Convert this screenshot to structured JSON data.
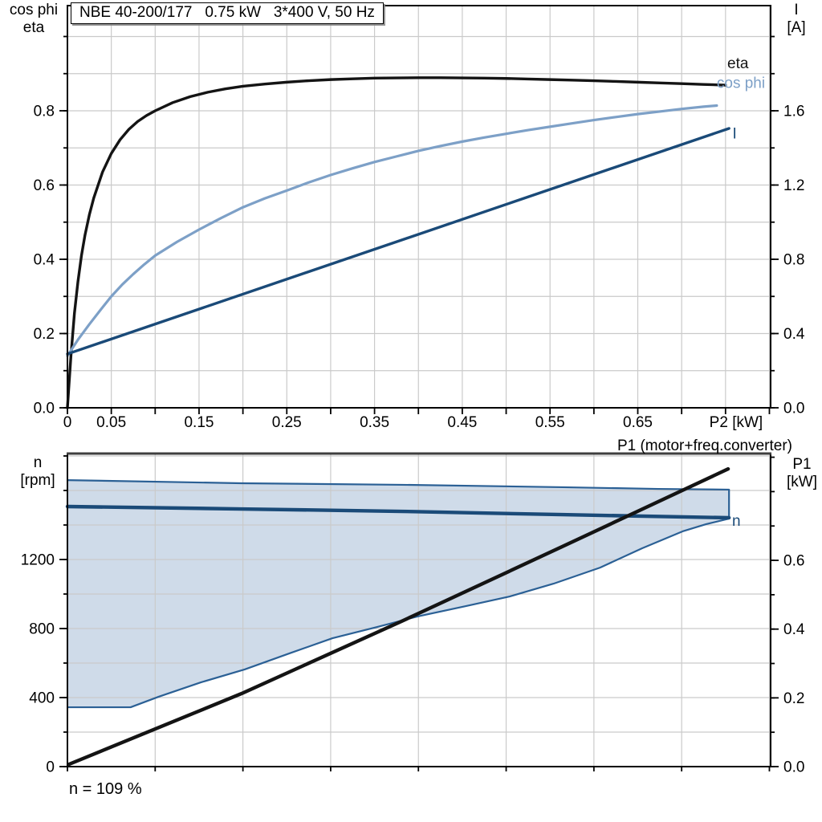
{
  "title_box": {
    "text": "NBE 40-200/177   0.75 kW   3*400 V, 50 Hz"
  },
  "footer": {
    "text": "n = 109 %"
  },
  "colors": {
    "black": "#141414",
    "light_blue": "#7da0c7",
    "dark_blue": "#1a4a78",
    "region_edge": "#2b6095",
    "region_fill": "#cfdbe9",
    "grid": "#cacaca",
    "frame": "#000000",
    "frame_gray": "#3f3f3f",
    "text": "#000000"
  },
  "chart_data": [
    {
      "id": "top",
      "type": "line",
      "x_axis": {
        "min": 0,
        "max": 0.8014,
        "grid_step": 0.05,
        "tick_step": 0.05,
        "unit": "kW",
        "labels": [
          {
            "v": 0,
            "t": "0"
          },
          {
            "v": 0.05,
            "t": "0.05"
          },
          {
            "v": 0.15,
            "t": "0.15"
          },
          {
            "v": 0.25,
            "t": "0.25"
          },
          {
            "v": 0.35,
            "t": "0.35"
          },
          {
            "v": 0.45,
            "t": "0.45"
          },
          {
            "v": 0.55,
            "t": "0.55"
          },
          {
            "v": 0.65,
            "t": "0.65"
          },
          {
            "v": 0.762,
            "t": "P2 [kW]"
          }
        ]
      },
      "y_left": {
        "title1": "cos phi",
        "title2": "eta",
        "min": 0,
        "max": 1.0832,
        "grid_step": 0.1,
        "minor_tick_step": 0.1,
        "labels": [
          {
            "v": 0,
            "t": "0.0"
          },
          {
            "v": 0.2,
            "t": "0.2"
          },
          {
            "v": 0.4,
            "t": "0.4"
          },
          {
            "v": 0.6,
            "t": "0.6"
          },
          {
            "v": 0.8,
            "t": "0.8"
          }
        ]
      },
      "y_right": {
        "title1": "I",
        "title2": "[A]",
        "min": 0,
        "max": 2.1665,
        "minor_tick_step": 0.2,
        "labels": [
          {
            "v": 0,
            "t": "0.0"
          },
          {
            "v": 0.4,
            "t": "0.4"
          },
          {
            "v": 0.8,
            "t": "0.8"
          },
          {
            "v": 1.2,
            "t": "1.2"
          },
          {
            "v": 1.6,
            "t": "1.6"
          }
        ]
      },
      "series": [
        {
          "name": "eta",
          "color_key": "black",
          "width": 3.4,
          "axis": "left",
          "label": {
            "t": "eta",
            "x": 0.752,
            "v": 0.915
          },
          "points": [
            [
              0,
              0
            ],
            [
              0.004,
              0.14
            ],
            [
              0.008,
              0.255
            ],
            [
              0.012,
              0.34
            ],
            [
              0.016,
              0.41
            ],
            [
              0.02,
              0.465
            ],
            [
              0.025,
              0.52
            ],
            [
              0.03,
              0.565
            ],
            [
              0.04,
              0.635
            ],
            [
              0.05,
              0.685
            ],
            [
              0.06,
              0.722
            ],
            [
              0.07,
              0.75
            ],
            [
              0.08,
              0.771
            ],
            [
              0.09,
              0.787
            ],
            [
              0.1,
              0.8
            ],
            [
              0.12,
              0.822
            ],
            [
              0.14,
              0.838
            ],
            [
              0.16,
              0.85
            ],
            [
              0.18,
              0.859
            ],
            [
              0.2,
              0.866
            ],
            [
              0.225,
              0.872
            ],
            [
              0.25,
              0.877
            ],
            [
              0.275,
              0.881
            ],
            [
              0.3,
              0.884
            ],
            [
              0.325,
              0.886
            ],
            [
              0.35,
              0.888
            ],
            [
              0.375,
              0.8885
            ],
            [
              0.4,
              0.889
            ],
            [
              0.425,
              0.889
            ],
            [
              0.45,
              0.8885
            ],
            [
              0.475,
              0.888
            ],
            [
              0.5,
              0.887
            ],
            [
              0.525,
              0.8855
            ],
            [
              0.55,
              0.884
            ],
            [
              0.575,
              0.8825
            ],
            [
              0.6,
              0.881
            ],
            [
              0.625,
              0.879
            ],
            [
              0.65,
              0.877
            ],
            [
              0.675,
              0.875
            ],
            [
              0.7,
              0.873
            ],
            [
              0.725,
              0.871
            ],
            [
              0.75,
              0.869
            ]
          ]
        },
        {
          "name": "cos-phi",
          "color_key": "light_blue",
          "width": 3.2,
          "axis": "left",
          "label": {
            "t": "cos phi",
            "x": 0.74,
            "v": 0.862,
            "anchor": "start"
          },
          "points": [
            [
              0,
              0.14
            ],
            [
              0.0125,
              0.185
            ],
            [
              0.025,
              0.225
            ],
            [
              0.0375,
              0.263
            ],
            [
              0.05,
              0.3
            ],
            [
              0.0625,
              0.332
            ],
            [
              0.075,
              0.36
            ],
            [
              0.0875,
              0.386
            ],
            [
              0.1,
              0.41
            ],
            [
              0.125,
              0.447
            ],
            [
              0.15,
              0.48
            ],
            [
              0.175,
              0.511
            ],
            [
              0.2,
              0.54
            ],
            [
              0.225,
              0.564
            ],
            [
              0.25,
              0.585
            ],
            [
              0.275,
              0.607
            ],
            [
              0.3,
              0.627
            ],
            [
              0.325,
              0.645
            ],
            [
              0.35,
              0.662
            ],
            [
              0.375,
              0.677
            ],
            [
              0.4,
              0.692
            ],
            [
              0.425,
              0.705
            ],
            [
              0.45,
              0.717
            ],
            [
              0.475,
              0.728
            ],
            [
              0.5,
              0.738
            ],
            [
              0.525,
              0.748
            ],
            [
              0.55,
              0.757
            ],
            [
              0.575,
              0.766
            ],
            [
              0.6,
              0.775
            ],
            [
              0.625,
              0.783
            ],
            [
              0.65,
              0.791
            ],
            [
              0.675,
              0.798
            ],
            [
              0.7,
              0.805
            ],
            [
              0.725,
              0.811
            ],
            [
              0.74,
              0.814
            ]
          ]
        },
        {
          "name": "current",
          "color_key": "dark_blue",
          "width": 3.4,
          "axis": "right",
          "label": {
            "t": "I",
            "x": 0.758,
            "v": 1.45
          },
          "points": [
            [
              0,
              0.29
            ],
            [
              0.754,
              1.505
            ]
          ]
        }
      ]
    },
    {
      "id": "bottom",
      "type": "line",
      "top_edge_gray": true,
      "x_axis": {
        "min": 0,
        "max": 0.8014,
        "grid_step": 0.1,
        "tick_step": 0.1,
        "labels": []
      },
      "y_left": {
        "title1": "n",
        "title2": "[rpm]",
        "min": 0,
        "max": 1814,
        "grid_step": 200,
        "minor_tick_step": 200,
        "labels": [
          {
            "v": 0,
            "t": "0"
          },
          {
            "v": 400,
            "t": "400"
          },
          {
            "v": 800,
            "t": "800"
          },
          {
            "v": 1200,
            "t": "1200"
          }
        ]
      },
      "y_right": {
        "title1": "P1",
        "title2": "[kW]",
        "min": 0,
        "max": 0.9107,
        "minor_tick_step": 0.1,
        "labels": [
          {
            "v": 0,
            "t": "0.0"
          },
          {
            "v": 0.2,
            "t": "0.2"
          },
          {
            "v": 0.4,
            "t": "0.4"
          },
          {
            "v": 0.6,
            "t": "0.6"
          }
        ]
      },
      "annotation": {
        "text": "P1 (motor+freq.converter)"
      },
      "region": {
        "name": "speed-range",
        "upper": [
          [
            0,
            1660
          ],
          [
            0.198,
            1642
          ],
          [
            0.381,
            1633
          ],
          [
            0.564,
            1619
          ],
          [
            0.673,
            1609
          ],
          [
            0.754,
            1605
          ]
        ],
        "lower": [
          [
            0,
            344
          ],
          [
            0.072,
            344
          ],
          [
            0.104,
            405
          ],
          [
            0.152,
            488
          ],
          [
            0.202,
            563
          ],
          [
            0.253,
            656
          ],
          [
            0.302,
            744
          ],
          [
            0.353,
            809
          ],
          [
            0.399,
            870
          ],
          [
            0.454,
            930
          ],
          [
            0.504,
            986
          ],
          [
            0.554,
            1060
          ],
          [
            0.607,
            1153
          ],
          [
            0.655,
            1265
          ],
          [
            0.701,
            1363
          ],
          [
            0.728,
            1405
          ],
          [
            0.754,
            1437
          ]
        ]
      },
      "series": [
        {
          "name": "n",
          "color_key": "dark_blue",
          "width": 4.4,
          "axis": "left",
          "label": {
            "t": "n",
            "x": 0.7575,
            "v": 1395
          },
          "points": [
            [
              0,
              1507
            ],
            [
              0.198,
              1493
            ],
            [
              0.381,
              1479
            ],
            [
              0.564,
              1460
            ],
            [
              0.754,
              1442
            ]
          ]
        },
        {
          "name": "P1",
          "color_key": "black",
          "width": 4.4,
          "axis": "right",
          "points": [
            [
              0.002,
              0.007
            ],
            [
              0.198,
              0.212
            ],
            [
              0.381,
              0.423
            ],
            [
              0.564,
              0.64
            ],
            [
              0.753,
              0.866
            ]
          ]
        }
      ]
    }
  ]
}
